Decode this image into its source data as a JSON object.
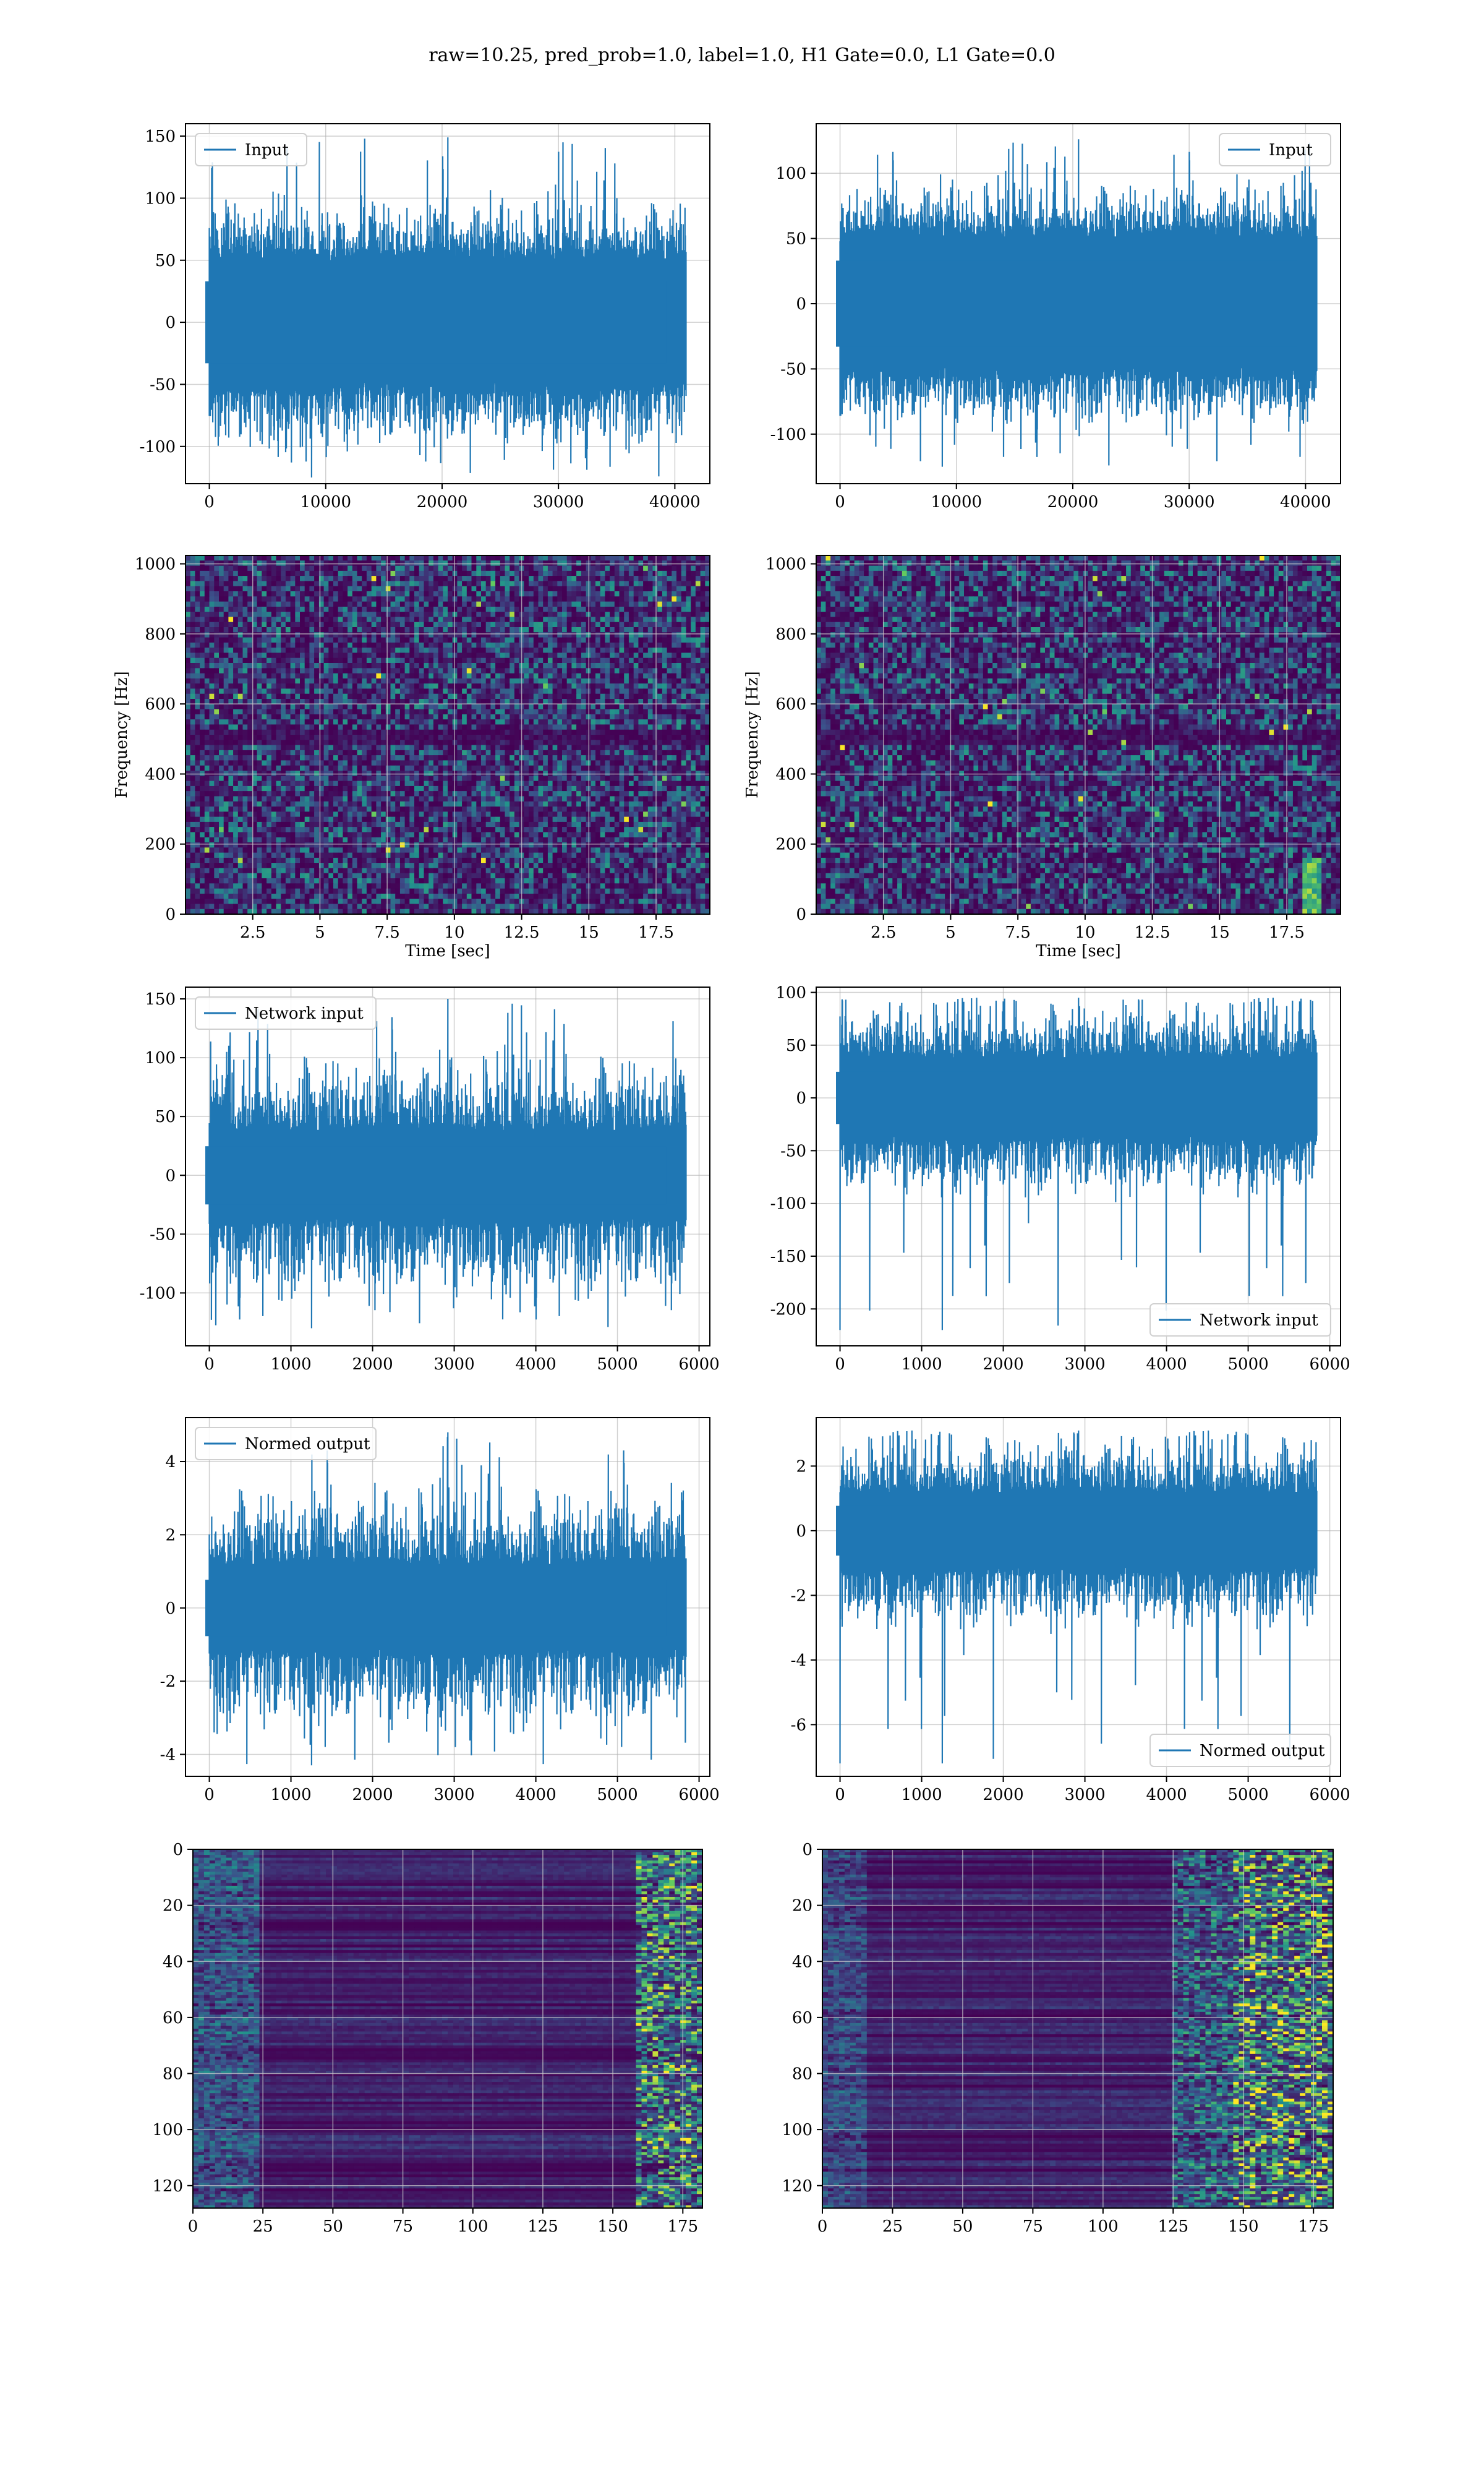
{
  "title": "raw=10.25, pred_prob=1.0, label=1.0, H1 Gate=0.0, L1 Gate=0.0",
  "colors": {
    "line": "#1f77b4",
    "grid": "#b0b0b0",
    "viridis_low": "#440154"
  },
  "chart_data": [
    {
      "id": "h1-input",
      "type": "line",
      "legend": "Input",
      "legend_loc": "upper left",
      "x_range": [
        0,
        40960
      ],
      "xlim": [
        -2048,
        43008
      ],
      "ylim": [
        -130,
        160
      ],
      "xticks": [
        0,
        10000,
        20000,
        30000,
        40000
      ],
      "yticks": [
        -100,
        -50,
        0,
        50,
        100,
        150
      ],
      "envelope": {
        "core": 60,
        "peak": 100,
        "min": -125,
        "max": 149
      },
      "grid": true
    },
    {
      "id": "l1-input",
      "type": "line",
      "legend": "Input",
      "legend_loc": "upper right",
      "x_range": [
        0,
        40960
      ],
      "xlim": [
        -2048,
        43008
      ],
      "ylim": [
        -138,
        138
      ],
      "xticks": [
        0,
        10000,
        20000,
        30000,
        40000
      ],
      "yticks": [
        -100,
        -50,
        0,
        50,
        100
      ],
      "envelope": {
        "core": 60,
        "peak": 95,
        "min": -125,
        "max": 126
      },
      "grid": true
    },
    {
      "id": "h1-spectrogram",
      "type": "heatmap",
      "xlabel": "Time [sec]",
      "ylabel": "Frequency [Hz]",
      "xlim": [
        0,
        19.5
      ],
      "ylim": [
        0,
        1024
      ],
      "xticks": [
        2.5,
        5.0,
        7.5,
        10.0,
        12.5,
        15.0,
        17.5
      ],
      "ytick_labels": [
        "0",
        "200",
        "400",
        "600",
        "800",
        "1000"
      ],
      "ytick_values": [
        0,
        200,
        400,
        600,
        800,
        1000
      ],
      "colormap": "viridis",
      "grid": true
    },
    {
      "id": "l1-spectrogram",
      "type": "heatmap",
      "xlabel": "Time [sec]",
      "ylabel": "Frequency [Hz]",
      "xlim": [
        0,
        19.5
      ],
      "ylim": [
        0,
        1024
      ],
      "xticks": [
        2.5,
        5.0,
        7.5,
        10.0,
        12.5,
        15.0,
        17.5
      ],
      "ytick_labels": [
        "0",
        "200",
        "400",
        "600",
        "800",
        "1000"
      ],
      "ytick_values": [
        0,
        200,
        400,
        600,
        800,
        1000
      ],
      "colormap": "viridis",
      "grid": true
    },
    {
      "id": "h1-network-input",
      "type": "line",
      "legend": "Network input",
      "legend_loc": "upper left",
      "x_range": [
        0,
        5840
      ],
      "xlim": [
        -292,
        6132
      ],
      "ylim": [
        -145,
        160
      ],
      "xticks": [
        0,
        1000,
        2000,
        3000,
        4000,
        5000,
        6000
      ],
      "yticks": [
        -100,
        -50,
        0,
        50,
        100,
        150
      ],
      "envelope": {
        "core": 45,
        "peak": 100,
        "min": -130,
        "max": 150
      },
      "grid": true
    },
    {
      "id": "l1-network-input",
      "type": "line",
      "legend": "Network input",
      "legend_loc": "lower right",
      "x_range": [
        0,
        5840
      ],
      "xlim": [
        -292,
        6132
      ],
      "ylim": [
        -235,
        105
      ],
      "xticks": [
        0,
        1000,
        2000,
        3000,
        4000,
        5000,
        6000
      ],
      "yticks": [
        -200,
        -150,
        -100,
        -50,
        0,
        50,
        100
      ],
      "envelope": {
        "core": 45,
        "peak": 90,
        "min": -220,
        "max": 95
      },
      "grid": true
    },
    {
      "id": "h1-normed-output",
      "type": "line",
      "legend": "Normed output",
      "legend_loc": "upper left",
      "x_range": [
        0,
        5840
      ],
      "xlim": [
        -292,
        6132
      ],
      "ylim": [
        -4.6,
        5.2
      ],
      "xticks": [
        0,
        1000,
        2000,
        3000,
        4000,
        5000,
        6000
      ],
      "yticks": [
        -4,
        -2,
        0,
        2,
        4
      ],
      "envelope": {
        "core": 1.4,
        "peak": 3.2,
        "min": -4.3,
        "max": 4.8
      },
      "grid": true
    },
    {
      "id": "l1-normed-output",
      "type": "line",
      "legend": "Normed output",
      "legend_loc": "lower right",
      "x_range": [
        0,
        5840
      ],
      "xlim": [
        -292,
        6132
      ],
      "ylim": [
        -7.6,
        3.5
      ],
      "xticks": [
        0,
        1000,
        2000,
        3000,
        4000,
        5000,
        6000
      ],
      "yticks": [
        -6,
        -4,
        -2,
        0,
        2
      ],
      "envelope": {
        "core": 1.4,
        "peak": 2.9,
        "min": -7.2,
        "max": 3.1
      },
      "grid": true
    },
    {
      "id": "h1-feature-map",
      "type": "heatmap",
      "xlim": [
        0,
        182
      ],
      "ylim": [
        128,
        0
      ],
      "xticks": [
        0,
        25,
        50,
        75,
        100,
        125,
        150,
        175
      ],
      "ytick_labels": [
        "0",
        "20",
        "40",
        "60",
        "80",
        "100",
        "120"
      ],
      "ytick_values": [
        0,
        20,
        40,
        60,
        80,
        100,
        120
      ],
      "colormap": "viridis",
      "grid": true
    },
    {
      "id": "l1-feature-map",
      "type": "heatmap",
      "xlim": [
        0,
        182
      ],
      "ylim": [
        128,
        0
      ],
      "xticks": [
        0,
        25,
        50,
        75,
        100,
        125,
        150,
        175
      ],
      "ytick_labels": [
        "0",
        "20",
        "40",
        "60",
        "80",
        "100",
        "120"
      ],
      "ytick_values": [
        0,
        20,
        40,
        60,
        80,
        100,
        120
      ],
      "colormap": "viridis",
      "grid": true
    }
  ]
}
